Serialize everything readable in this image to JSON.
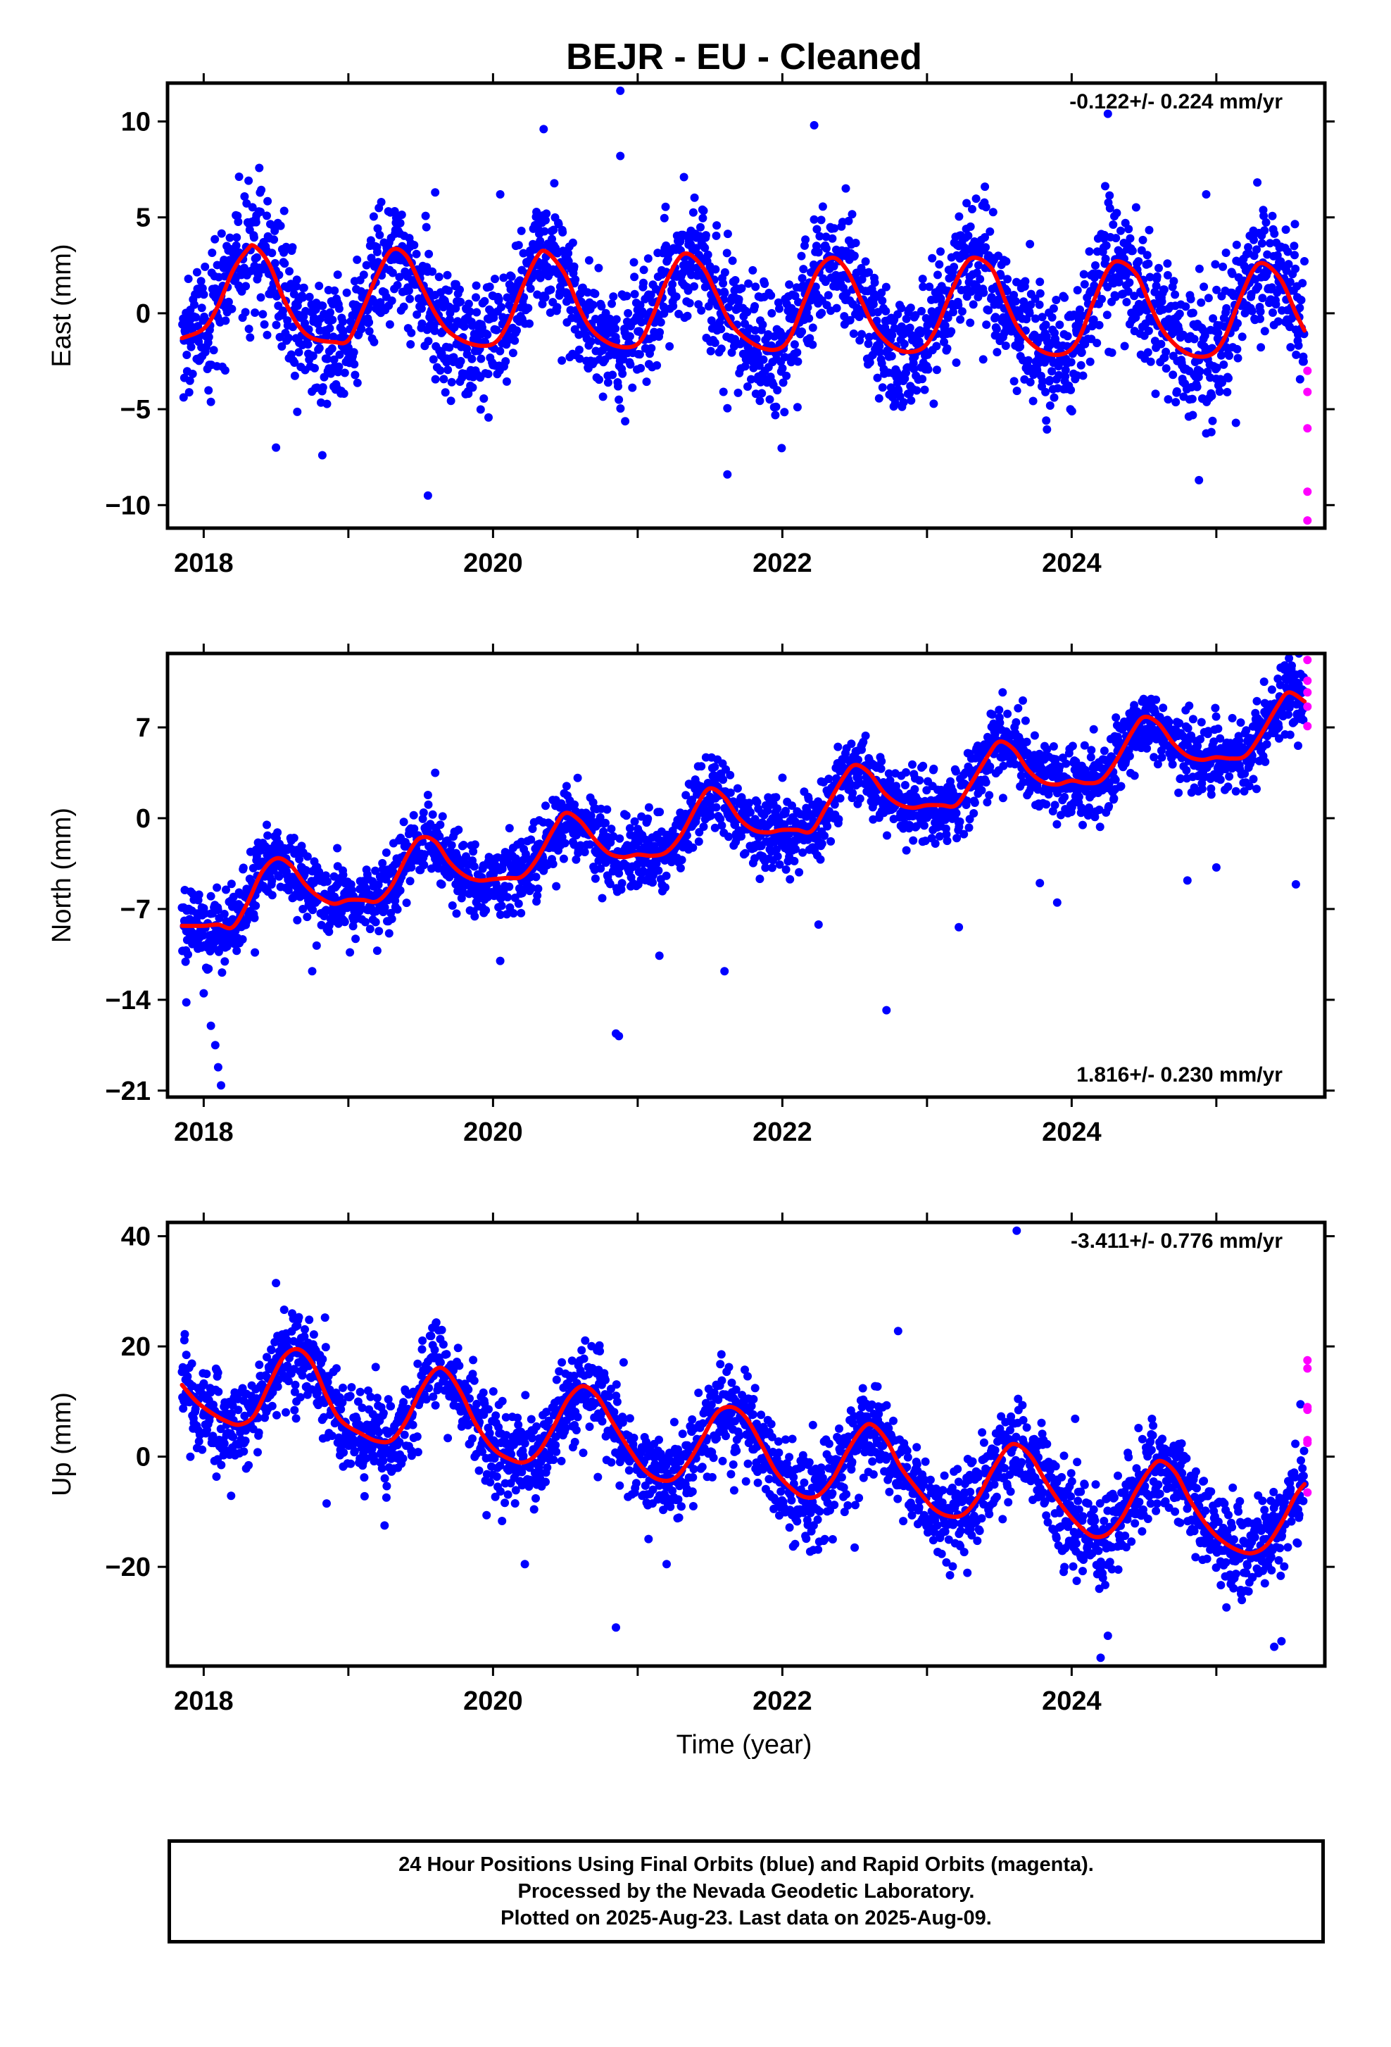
{
  "title": "BEJR  - EU - Cleaned",
  "xlabel": "Time (year)",
  "footer": [
    "24 Hour Positions Using Final Orbits (blue) and Rapid Orbits (magenta).",
    "Processed by the Nevada Geodetic Laboratory.",
    "Plotted on 2025-Aug-23. Last data on 2025-Aug-09."
  ],
  "colors": {
    "final": "#0000ff",
    "rapid": "#ff00ff",
    "model": "#ff0000",
    "frame": "#000000"
  },
  "chart_data": [
    {
      "type": "scatter",
      "id": "east",
      "ylabel": "East (mm)",
      "rate_label": "-0.122+/- 0.224 mm/yr",
      "rate_position": "top-right",
      "xlim": [
        2017.75,
        2025.75
      ],
      "ylim": [
        -11.2,
        12
      ],
      "xticks": [
        2018,
        2020,
        2022,
        2024
      ],
      "yticks": [
        -10,
        -5,
        0,
        5,
        10
      ],
      "ytick_labels": [
        "−10",
        "−5",
        "0",
        "5",
        "10"
      ],
      "data_start": 2017.85,
      "data_end": 2025.61,
      "rapid_start": 2025.62,
      "trend": {
        "rate": -0.122,
        "offset": 0.4,
        "ref_year": 2021.7
      },
      "seasonal": {
        "annual_amp": 2.5,
        "annual_phase_year": 0.31,
        "semi_amp": 0.6,
        "semi_phase_year": 0.1
      },
      "scatter_sd": 1.6,
      "outliers": [
        [
          2020.35,
          9.6
        ],
        [
          2020.88,
          11.6
        ],
        [
          2020.88,
          8.2
        ],
        [
          2022.22,
          9.8
        ],
        [
          2024.25,
          10.4
        ],
        [
          2019.55,
          -9.5
        ],
        [
          2018.5,
          -7.0
        ],
        [
          2018.82,
          -7.4
        ],
        [
          2021.62,
          -8.4
        ],
        [
          2024.88,
          -8.7
        ],
        [
          2019.6,
          6.3
        ],
        [
          2020.05,
          6.2
        ],
        [
          2021.32,
          7.1
        ],
        [
          2023.4,
          6.6
        ],
        [
          2024.93,
          6.2
        ]
      ],
      "rapid_points": [
        [
          2025.63,
          -3.0
        ],
        [
          2025.63,
          -4.1
        ],
        [
          2025.63,
          -6.0
        ],
        [
          2025.63,
          -9.3
        ],
        [
          2025.63,
          -10.8
        ]
      ],
      "model_points": [
        [
          2017.85,
          -1.3
        ],
        [
          2018.0,
          -0.8
        ],
        [
          2018.1,
          0.4
        ],
        [
          2018.2,
          2.2
        ],
        [
          2018.3,
          3.3
        ],
        [
          2018.35,
          3.5
        ],
        [
          2018.45,
          2.6
        ],
        [
          2018.55,
          0.8
        ],
        [
          2018.65,
          -0.6
        ],
        [
          2018.75,
          -1.3
        ],
        [
          2018.9,
          -1.5
        ],
        [
          2019.0,
          -1.4
        ],
        [
          2019.1,
          0.2
        ],
        [
          2019.2,
          2.0
        ],
        [
          2019.3,
          3.3
        ],
        [
          2019.4,
          3.0
        ],
        [
          2019.5,
          1.5
        ],
        [
          2019.6,
          0.0
        ],
        [
          2019.7,
          -1.0
        ],
        [
          2019.85,
          -1.6
        ],
        [
          2020.0,
          -1.6
        ],
        [
          2020.1,
          -0.6
        ],
        [
          2020.2,
          1.3
        ],
        [
          2020.3,
          2.9
        ],
        [
          2020.37,
          3.2
        ],
        [
          2020.5,
          2.0
        ],
        [
          2020.6,
          0.2
        ],
        [
          2020.7,
          -1.0
        ],
        [
          2020.85,
          -1.7
        ],
        [
          2021.0,
          -1.6
        ],
        [
          2021.1,
          -0.2
        ],
        [
          2021.2,
          1.7
        ],
        [
          2021.32,
          3.1
        ],
        [
          2021.45,
          2.4
        ],
        [
          2021.55,
          0.9
        ],
        [
          2021.65,
          -0.6
        ],
        [
          2021.8,
          -1.6
        ],
        [
          2021.95,
          -1.9
        ],
        [
          2022.05,
          -1.3
        ],
        [
          2022.15,
          0.6
        ],
        [
          2022.25,
          2.3
        ],
        [
          2022.35,
          2.9
        ],
        [
          2022.45,
          2.2
        ],
        [
          2022.55,
          0.6
        ],
        [
          2022.65,
          -0.9
        ],
        [
          2022.8,
          -1.9
        ],
        [
          2022.95,
          -1.9
        ],
        [
          2023.05,
          -1.0
        ],
        [
          2023.15,
          0.8
        ],
        [
          2023.25,
          2.4
        ],
        [
          2023.33,
          2.9
        ],
        [
          2023.45,
          2.3
        ],
        [
          2023.55,
          0.5
        ],
        [
          2023.65,
          -1.0
        ],
        [
          2023.8,
          -2.0
        ],
        [
          2023.95,
          -2.1
        ],
        [
          2024.05,
          -1.3
        ],
        [
          2024.15,
          0.6
        ],
        [
          2024.25,
          2.3
        ],
        [
          2024.33,
          2.7
        ],
        [
          2024.45,
          2.0
        ],
        [
          2024.55,
          0.3
        ],
        [
          2024.65,
          -1.1
        ],
        [
          2024.8,
          -2.1
        ],
        [
          2024.95,
          -2.2
        ],
        [
          2025.05,
          -1.4
        ],
        [
          2025.15,
          0.5
        ],
        [
          2025.25,
          2.2
        ],
        [
          2025.33,
          2.6
        ],
        [
          2025.45,
          1.7
        ],
        [
          2025.55,
          0.0
        ],
        [
          2025.61,
          -0.9
        ]
      ]
    },
    {
      "type": "scatter",
      "id": "north",
      "ylabel": "North (mm)",
      "rate_label": "1.816+/- 0.230 mm/yr",
      "rate_position": "bottom-right",
      "xlim": [
        2017.75,
        2025.75
      ],
      "ylim": [
        -21.5,
        12.7
      ],
      "xticks": [
        2018,
        2020,
        2022,
        2024
      ],
      "yticks": [
        -21,
        -14,
        -7,
        0,
        7
      ],
      "ytick_labels": [
        "−21",
        "−14",
        "−7",
        "0",
        "7"
      ],
      "data_start": 2017.85,
      "data_end": 2025.61,
      "rapid_start": 2025.62,
      "trend": {
        "rate": 1.816,
        "offset": -8.6,
        "ref_year": 2017.85
      },
      "seasonal": {
        "annual_amp": 1.6,
        "annual_phase_year": 0.55,
        "semi_amp": 0.6,
        "semi_phase_year": 0.3
      },
      "scatter_sd": 1.4,
      "outliers": [
        [
          2018.05,
          -16.0
        ],
        [
          2018.08,
          -17.5
        ],
        [
          2018.1,
          -19.2
        ],
        [
          2018.12,
          -20.6
        ],
        [
          2017.88,
          -14.2
        ],
        [
          2018.0,
          -13.5
        ],
        [
          2018.75,
          -11.8
        ],
        [
          2020.85,
          -16.6
        ],
        [
          2020.87,
          -16.8
        ],
        [
          2022.72,
          -14.8
        ],
        [
          2021.6,
          -11.8
        ],
        [
          2022.25,
          -8.2
        ],
        [
          2023.22,
          -8.4
        ],
        [
          2019.05,
          -9.3
        ],
        [
          2020.05,
          -11.0
        ],
        [
          2021.15,
          -10.6
        ],
        [
          2024.8,
          -4.8
        ],
        [
          2025.0,
          -3.8
        ],
        [
          2025.55,
          -5.1
        ],
        [
          2023.78,
          -5.0
        ],
        [
          2023.9,
          -6.5
        ],
        [
          2019.6,
          3.5
        ]
      ],
      "rapid_points": [
        [
          2025.63,
          12.2
        ],
        [
          2025.63,
          10.6
        ],
        [
          2025.63,
          9.7
        ],
        [
          2025.63,
          8.6
        ],
        [
          2025.63,
          7.1
        ]
      ],
      "model_points": [
        [
          2017.85,
          -8.3
        ],
        [
          2018.0,
          -8.3
        ],
        [
          2018.1,
          -8.2
        ],
        [
          2018.2,
          -8.4
        ],
        [
          2018.3,
          -6.6
        ],
        [
          2018.4,
          -4.2
        ],
        [
          2018.5,
          -3.1
        ],
        [
          2018.6,
          -3.6
        ],
        [
          2018.7,
          -5.1
        ],
        [
          2018.8,
          -6.1
        ],
        [
          2018.9,
          -6.6
        ],
        [
          2019.0,
          -6.3
        ],
        [
          2019.1,
          -6.3
        ],
        [
          2019.2,
          -6.4
        ],
        [
          2019.3,
          -5.2
        ],
        [
          2019.42,
          -2.6
        ],
        [
          2019.5,
          -1.5
        ],
        [
          2019.6,
          -1.8
        ],
        [
          2019.7,
          -3.4
        ],
        [
          2019.8,
          -4.4
        ],
        [
          2019.9,
          -4.8
        ],
        [
          2020.0,
          -4.7
        ],
        [
          2020.1,
          -4.6
        ],
        [
          2020.2,
          -4.5
        ],
        [
          2020.3,
          -3.2
        ],
        [
          2020.42,
          -0.8
        ],
        [
          2020.5,
          0.4
        ],
        [
          2020.6,
          -0.2
        ],
        [
          2020.7,
          -1.6
        ],
        [
          2020.8,
          -2.7
        ],
        [
          2020.9,
          -3.0
        ],
        [
          2021.0,
          -2.8
        ],
        [
          2021.1,
          -2.9
        ],
        [
          2021.2,
          -2.6
        ],
        [
          2021.3,
          -1.3
        ],
        [
          2021.42,
          1.2
        ],
        [
          2021.5,
          2.3
        ],
        [
          2021.6,
          1.6
        ],
        [
          2021.7,
          0.0
        ],
        [
          2021.8,
          -0.9
        ],
        [
          2021.9,
          -1.1
        ],
        [
          2022.0,
          -0.9
        ],
        [
          2022.1,
          -0.9
        ],
        [
          2022.2,
          -1.0
        ],
        [
          2022.3,
          0.8
        ],
        [
          2022.42,
          3.1
        ],
        [
          2022.5,
          4.1
        ],
        [
          2022.6,
          3.5
        ],
        [
          2022.7,
          2.0
        ],
        [
          2022.8,
          1.1
        ],
        [
          2022.9,
          0.8
        ],
        [
          2023.0,
          1.0
        ],
        [
          2023.1,
          1.0
        ],
        [
          2023.2,
          1.0
        ],
        [
          2023.3,
          2.6
        ],
        [
          2023.42,
          4.8
        ],
        [
          2023.5,
          5.9
        ],
        [
          2023.6,
          5.3
        ],
        [
          2023.7,
          3.7
        ],
        [
          2023.8,
          2.8
        ],
        [
          2023.9,
          2.6
        ],
        [
          2024.0,
          2.9
        ],
        [
          2024.1,
          2.7
        ],
        [
          2024.2,
          2.9
        ],
        [
          2024.3,
          4.3
        ],
        [
          2024.42,
          6.7
        ],
        [
          2024.5,
          7.8
        ],
        [
          2024.6,
          7.3
        ],
        [
          2024.7,
          5.8
        ],
        [
          2024.8,
          4.8
        ],
        [
          2024.9,
          4.5
        ],
        [
          2025.0,
          4.7
        ],
        [
          2025.1,
          4.6
        ],
        [
          2025.2,
          4.8
        ],
        [
          2025.3,
          6.3
        ],
        [
          2025.42,
          8.6
        ],
        [
          2025.5,
          9.7
        ],
        [
          2025.61,
          9.0
        ]
      ]
    },
    {
      "type": "scatter",
      "id": "up",
      "ylabel": "Up (mm)",
      "rate_label": "-3.411+/- 0.776 mm/yr",
      "rate_position": "top-right",
      "xlim": [
        2017.75,
        2025.75
      ],
      "ylim": [
        -38,
        42.5
      ],
      "xticks": [
        2018,
        2020,
        2022,
        2024
      ],
      "yticks": [
        -20,
        0,
        20,
        40
      ],
      "ytick_labels": [
        "−20",
        "0",
        "20",
        "40"
      ],
      "data_start": 2017.85,
      "data_end": 2025.61,
      "rapid_start": 2025.62,
      "trend": {
        "rate": -3.411,
        "offset": 13.5,
        "ref_year": 2017.85
      },
      "seasonal": {
        "annual_amp": 6.5,
        "annual_phase_year": 0.64,
        "semi_amp": 1.2,
        "semi_phase_year": 0.2
      },
      "scatter_sd": 4.2,
      "outliers": [
        [
          2023.62,
          41.0
        ],
        [
          2018.5,
          31.5
        ],
        [
          2020.85,
          -31.0
        ],
        [
          2024.2,
          -36.5
        ],
        [
          2024.25,
          -32.5
        ],
        [
          2025.4,
          -34.5
        ],
        [
          2025.45,
          -33.5
        ],
        [
          2020.22,
          -19.5
        ],
        [
          2018.85,
          -8.5
        ],
        [
          2019.25,
          -12.5
        ],
        [
          2022.5,
          -16.5
        ],
        [
          2022.8,
          22.8
        ],
        [
          2021.2,
          -19.5
        ]
      ],
      "rapid_points": [
        [
          2025.63,
          17.5
        ],
        [
          2025.63,
          16.0
        ],
        [
          2025.63,
          9.0
        ],
        [
          2025.63,
          8.5
        ],
        [
          2025.63,
          3.0
        ],
        [
          2025.63,
          2.5
        ],
        [
          2025.63,
          -6.5
        ]
      ],
      "model_points": [
        [
          2017.85,
          13.0
        ],
        [
          2017.95,
          10.0
        ],
        [
          2018.05,
          8.0
        ],
        [
          2018.15,
          6.5
        ],
        [
          2018.25,
          5.8
        ],
        [
          2018.35,
          7.5
        ],
        [
          2018.45,
          13.0
        ],
        [
          2018.55,
          18.0
        ],
        [
          2018.65,
          19.5
        ],
        [
          2018.75,
          17.0
        ],
        [
          2018.85,
          11.0
        ],
        [
          2018.95,
          6.5
        ],
        [
          2019.1,
          4.0
        ],
        [
          2019.2,
          2.8
        ],
        [
          2019.3,
          3.0
        ],
        [
          2019.4,
          6.5
        ],
        [
          2019.5,
          12.0
        ],
        [
          2019.6,
          15.8
        ],
        [
          2019.68,
          15.5
        ],
        [
          2019.78,
          11.5
        ],
        [
          2019.88,
          6.0
        ],
        [
          2020.0,
          1.5
        ],
        [
          2020.12,
          -0.5
        ],
        [
          2020.22,
          -1.0
        ],
        [
          2020.32,
          1.0
        ],
        [
          2020.42,
          5.5
        ],
        [
          2020.52,
          10.5
        ],
        [
          2020.62,
          12.8
        ],
        [
          2020.72,
          11.0
        ],
        [
          2020.82,
          6.5
        ],
        [
          2020.95,
          1.0
        ],
        [
          2021.05,
          -2.5
        ],
        [
          2021.15,
          -4.2
        ],
        [
          2021.25,
          -4.0
        ],
        [
          2021.35,
          -1.0
        ],
        [
          2021.45,
          3.5
        ],
        [
          2021.55,
          8.0
        ],
        [
          2021.65,
          9.0
        ],
        [
          2021.75,
          7.0
        ],
        [
          2021.85,
          2.5
        ],
        [
          2021.95,
          -2.5
        ],
        [
          2022.05,
          -5.5
        ],
        [
          2022.15,
          -7.3
        ],
        [
          2022.25,
          -7.0
        ],
        [
          2022.35,
          -4.0
        ],
        [
          2022.45,
          1.0
        ],
        [
          2022.55,
          5.0
        ],
        [
          2022.62,
          5.8
        ],
        [
          2022.72,
          3.0
        ],
        [
          2022.82,
          -2.0
        ],
        [
          2022.95,
          -6.5
        ],
        [
          2023.05,
          -9.5
        ],
        [
          2023.15,
          -10.8
        ],
        [
          2023.25,
          -10.5
        ],
        [
          2023.35,
          -7.5
        ],
        [
          2023.45,
          -2.5
        ],
        [
          2023.55,
          1.5
        ],
        [
          2023.62,
          2.2
        ],
        [
          2023.72,
          0.0
        ],
        [
          2023.82,
          -4.5
        ],
        [
          2023.95,
          -9.5
        ],
        [
          2024.05,
          -12.5
        ],
        [
          2024.15,
          -14.5
        ],
        [
          2024.25,
          -14.0
        ],
        [
          2024.35,
          -11.0
        ],
        [
          2024.45,
          -6.0
        ],
        [
          2024.55,
          -2.0
        ],
        [
          2024.62,
          -0.8
        ],
        [
          2024.72,
          -3.0
        ],
        [
          2024.82,
          -8.0
        ],
        [
          2024.95,
          -13.0
        ],
        [
          2025.05,
          -15.5
        ],
        [
          2025.15,
          -17.0
        ],
        [
          2025.25,
          -17.5
        ],
        [
          2025.35,
          -16.0
        ],
        [
          2025.45,
          -12.0
        ],
        [
          2025.55,
          -7.0
        ],
        [
          2025.61,
          -5.0
        ]
      ]
    }
  ]
}
